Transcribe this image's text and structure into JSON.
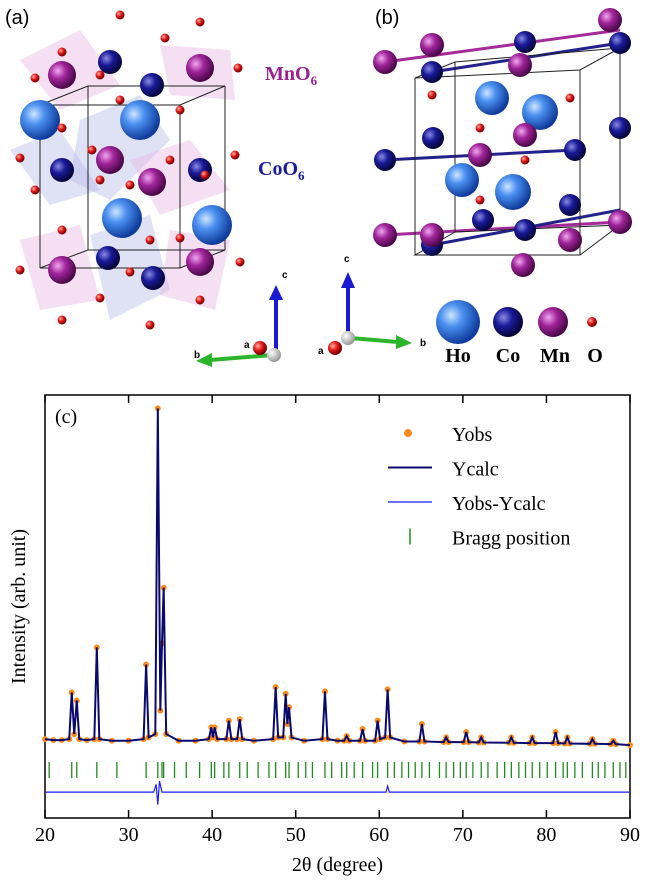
{
  "figure": {
    "panel_a": "(a)",
    "panel_b": "(b)",
    "mno6": {
      "text": "MnO",
      "sub": "6"
    },
    "coo6": {
      "text": "CoO",
      "sub": "6"
    },
    "axes_a": {
      "c": "c",
      "b": "b",
      "a": "a"
    },
    "axes_b": {
      "c": "c",
      "b": "b",
      "a": "a"
    },
    "atoms": [
      "Ho",
      "Co",
      "Mn",
      "O"
    ]
  },
  "chart_data": {
    "type": "line",
    "panel_label": "(c)",
    "x_label": "2θ (degree)",
    "y_label": "Intensity (arb. unit)",
    "xlim": [
      20,
      90
    ],
    "xticks": [
      20,
      30,
      40,
      50,
      60,
      70,
      80,
      90
    ],
    "ylim": [
      -22,
      104
    ],
    "legend": "upper right",
    "x": [
      20,
      21,
      22,
      22.9,
      23.2,
      23.5,
      23.8,
      24.1,
      25,
      25.9,
      26.2,
      26.5,
      28,
      30,
      31.8,
      32.1,
      32.4,
      33.2,
      33.5,
      33.8,
      34.0,
      34.2,
      34.5,
      36,
      38,
      39.6,
      39.9,
      40.1,
      40.3,
      40.6,
      41.7,
      42.0,
      42.3,
      43.0,
      43.3,
      43.6,
      45,
      47.3,
      47.6,
      47.9,
      48.5,
      48.8,
      49.0,
      49.2,
      49.5,
      51,
      53.2,
      53.5,
      53.8,
      55,
      55.8,
      56.1,
      56.4,
      57.7,
      58.0,
      58.3,
      59.5,
      59.8,
      60.1,
      60.7,
      61.0,
      61.3,
      63,
      64.8,
      65.1,
      65.4,
      67.7,
      68.0,
      68.3,
      70.1,
      70.4,
      70.7,
      71.9,
      72.2,
      72.5,
      75.5,
      75.8,
      76.1,
      78.0,
      78.3,
      78.6,
      80.8,
      81.1,
      81.4,
      82.2,
      82.5,
      82.8,
      85.2,
      85.5,
      85.8,
      87.7,
      88.0,
      88.3,
      90
    ],
    "series": [
      {
        "name": "Yobs",
        "color": "#ff8c1a",
        "style": "dots",
        "values": [
          1.5,
          1.2,
          1.2,
          1.5,
          15.4,
          3,
          13,
          1.5,
          1.2,
          1.5,
          28.8,
          1.5,
          1,
          1,
          1.5,
          23.7,
          2,
          3,
          100,
          10,
          30,
          46.6,
          3,
          1,
          1,
          1.5,
          5,
          2,
          5,
          1.5,
          1.5,
          7,
          1.5,
          1.5,
          7.4,
          1.5,
          1,
          1.5,
          17,
          2,
          2,
          15,
          6,
          11,
          2,
          1,
          1.5,
          15.7,
          1.5,
          1,
          1,
          2.4,
          1,
          1,
          4.5,
          1,
          1,
          7,
          1.5,
          2,
          16.3,
          2,
          0.8,
          0.8,
          6,
          0.8,
          0.6,
          2,
          0.6,
          0.6,
          3.6,
          0.6,
          0.5,
          2,
          0.5,
          0.4,
          2,
          0.4,
          0.3,
          2,
          0.3,
          0.3,
          3.6,
          0.3,
          0.2,
          2,
          0.2,
          0.1,
          1.5,
          0.1,
          0,
          1,
          0,
          -0.3
        ]
      },
      {
        "name": "Ycalc",
        "color": "#0a0a6e",
        "style": "line-thick",
        "values": [
          1.5,
          1.2,
          1.2,
          1.5,
          15.4,
          3,
          13,
          1.5,
          1.2,
          1.5,
          28.8,
          1.5,
          1,
          1,
          1.5,
          23.7,
          2,
          3,
          100,
          10,
          30,
          46.6,
          3,
          1,
          1,
          1.5,
          5,
          2,
          5,
          1.5,
          1.5,
          7,
          1.5,
          1.5,
          7.4,
          1.5,
          1,
          1.5,
          17,
          2,
          2,
          15,
          6,
          11,
          2,
          1,
          1.5,
          15.7,
          1.5,
          1,
          1,
          2.4,
          1,
          1,
          4.5,
          1,
          1,
          7,
          1.5,
          2,
          16.3,
          2,
          0.8,
          0.8,
          6,
          0.8,
          0.6,
          2,
          0.6,
          0.6,
          3.6,
          0.6,
          0.5,
          2,
          0.5,
          0.4,
          2,
          0.4,
          0.3,
          2,
          0.3,
          0.3,
          3.6,
          0.3,
          0.2,
          2,
          0.2,
          0.1,
          1.5,
          0.1,
          0,
          1,
          0,
          -0.3
        ]
      },
      {
        "name": "Yobs-Ycalc",
        "color": "#1a1aff",
        "style": "line-thin",
        "x": [
          20,
          33.0,
          33.3,
          33.5,
          33.7,
          34.0,
          60.8,
          61.0,
          61.2,
          90
        ],
        "values": [
          -14.3,
          -14.3,
          -12,
          -18,
          -11,
          -14.3,
          -14.3,
          -12.5,
          -14.3,
          -14.3
        ]
      },
      {
        "name": "Bragg position",
        "color": "#1f8c1f",
        "style": "ticks",
        "x": [
          20.5,
          23.2,
          23.8,
          26.2,
          28.6,
          32.1,
          33.5,
          34.0,
          34.2,
          35.5,
          36.9,
          38.5,
          39.9,
          40.3,
          41.4,
          42.0,
          43.3,
          44.2,
          45.5,
          46.8,
          47.6,
          48.8,
          49.2,
          50.3,
          51.2,
          52.0,
          53.5,
          54.3,
          55.5,
          56.1,
          57.0,
          58.0,
          59.2,
          59.8,
          61.0,
          61.8,
          62.7,
          63.5,
          64.3,
          65.1,
          66.0,
          67.2,
          68.0,
          68.9,
          69.7,
          70.4,
          71.2,
          72.2,
          73.0,
          74.1,
          75.0,
          75.8,
          76.7,
          77.5,
          78.3,
          79.2,
          80.1,
          81.1,
          82.0,
          82.5,
          83.4,
          84.3,
          85.5,
          86.2,
          87.0,
          88.0,
          88.8,
          89.5
        ]
      }
    ]
  }
}
